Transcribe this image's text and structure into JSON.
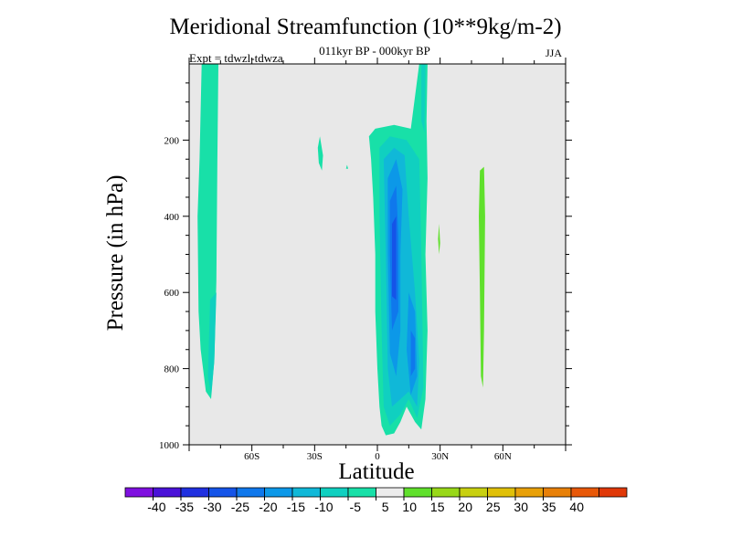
{
  "chart_data": {
    "type": "contour",
    "title": "Meridional Streamfunction (10**9kg/m-2)",
    "subtitle": "011kyr BP - 000kyr BP",
    "left_string": "Expt = tdwzl-tdwza",
    "right_string": "JJA",
    "xlabel": "Latitude",
    "ylabel": "Pressure (in hPa)",
    "xlim": [
      -90,
      90
    ],
    "ylim": [
      1000,
      0
    ],
    "x_ticks": [
      {
        "value": -60,
        "label": "60S"
      },
      {
        "value": -30,
        "label": "30S"
      },
      {
        "value": 0,
        "label": "0"
      },
      {
        "value": 30,
        "label": "30N"
      },
      {
        "value": 60,
        "label": "60N"
      }
    ],
    "y_ticks": [
      {
        "value": 200,
        "label": "200"
      },
      {
        "value": 400,
        "label": "400"
      },
      {
        "value": 600,
        "label": "600"
      },
      {
        "value": 800,
        "label": "800"
      },
      {
        "value": 1000,
        "label": "1000"
      }
    ],
    "background_color": "#e8e8e8",
    "colorbar": {
      "colors": [
        "#7f10e0",
        "#4a12d8",
        "#2030e0",
        "#1554e8",
        "#0f78ec",
        "#0c98e8",
        "#10b8d8",
        "#10d0c0",
        "#18e0a8",
        "#ececec",
        "#60e02c",
        "#98d818",
        "#c8d010",
        "#e0c008",
        "#e8a008",
        "#e88008",
        "#e85808",
        "#e03808"
      ],
      "labels": [
        "-40",
        "-35",
        "-30",
        "-25",
        "-20",
        "-15",
        "-10",
        "-5",
        "5",
        "10",
        "15",
        "20",
        "25",
        "30",
        "35",
        "40"
      ]
    },
    "regions": [
      {
        "name": "sh-polar-cell",
        "value_class": -5,
        "color": "#18e0a8",
        "points": [
          [
            -84,
            0
          ],
          [
            -76,
            0
          ],
          [
            -76.5,
            250
          ],
          [
            -77,
            570
          ],
          [
            -78,
            780
          ],
          [
            -79.5,
            880
          ],
          [
            -82,
            860
          ],
          [
            -84.5,
            750
          ],
          [
            -85.5,
            650
          ],
          [
            -86,
            400
          ],
          [
            -85,
            250
          ]
        ]
      },
      {
        "name": "sh-polar-inner",
        "value_class": -10,
        "color": "#10d0c0",
        "points": [
          [
            -80,
            620
          ],
          [
            -77,
            600
          ],
          [
            -78,
            780
          ],
          [
            -79.5,
            870
          ],
          [
            -81,
            820
          ]
        ]
      },
      {
        "name": "sh-small-blob",
        "value_class": -5,
        "color": "#18e0a8",
        "points": [
          [
            -27.5,
            190
          ],
          [
            -26,
            240
          ],
          [
            -26.5,
            280
          ],
          [
            -28,
            260
          ],
          [
            -28.5,
            220
          ]
        ]
      },
      {
        "name": "sh-tiny-blob",
        "value_class": -5,
        "color": "#18e0a8",
        "points": [
          [
            -14.5,
            265
          ],
          [
            -14,
            275
          ],
          [
            -15,
            275
          ]
        ]
      },
      {
        "name": "hadley-cell",
        "value_class": -5,
        "color": "#18e0a8",
        "points": [
          [
            -4,
            190
          ],
          [
            -1,
            170
          ],
          [
            8,
            160
          ],
          [
            16,
            170
          ],
          [
            20,
            0
          ],
          [
            24,
            0
          ],
          [
            23.5,
            150
          ],
          [
            24,
            300
          ],
          [
            23,
            500
          ],
          [
            24,
            700
          ],
          [
            23,
            880
          ],
          [
            21,
            960
          ],
          [
            18,
            940
          ],
          [
            14,
            900
          ],
          [
            11,
            940
          ],
          [
            8,
            970
          ],
          [
            4,
            975
          ],
          [
            2,
            950
          ],
          [
            1,
            900
          ],
          [
            0,
            800
          ],
          [
            -1,
            650
          ],
          [
            -1,
            500
          ],
          [
            -2,
            350
          ],
          [
            -3,
            250
          ]
        ]
      },
      {
        "name": "hadley-cell-upper",
        "value_class": -10,
        "color": "#10d0c0",
        "points": [
          [
            21,
            0
          ],
          [
            23,
            0
          ],
          [
            22.5,
            180
          ],
          [
            21,
            150
          ]
        ]
      },
      {
        "name": "hadley-cell-a",
        "value_class": -10,
        "color": "#10d0c0",
        "points": [
          [
            1,
            220
          ],
          [
            6,
            190
          ],
          [
            14,
            200
          ],
          [
            20,
            250
          ],
          [
            21,
            500
          ],
          [
            22,
            850
          ],
          [
            19,
            930
          ],
          [
            15,
            880
          ],
          [
            11,
            920
          ],
          [
            6,
            950
          ],
          [
            3,
            900
          ],
          [
            2,
            700
          ],
          [
            1,
            400
          ]
        ]
      },
      {
        "name": "hadley-cell-b",
        "value_class": -15,
        "color": "#10b8d8",
        "points": [
          [
            3,
            250
          ],
          [
            8,
            220
          ],
          [
            13,
            240
          ],
          [
            15,
            400
          ],
          [
            18,
            600
          ],
          [
            20,
            780
          ],
          [
            19,
            900
          ],
          [
            15,
            860
          ],
          [
            11,
            880
          ],
          [
            7,
            900
          ],
          [
            5,
            800
          ],
          [
            4,
            500
          ]
        ]
      },
      {
        "name": "hadley-cell-c",
        "value_class": -20,
        "color": "#0c98e8",
        "points": [
          [
            5,
            300
          ],
          [
            9,
            250
          ],
          [
            12,
            330
          ],
          [
            11,
            500
          ],
          [
            11,
            700
          ],
          [
            9,
            820
          ],
          [
            6,
            760
          ],
          [
            5,
            500
          ]
        ]
      },
      {
        "name": "hadley-cell-d",
        "value_class": -20,
        "color": "#0c98e8",
        "points": [
          [
            15,
            600
          ],
          [
            18,
            650
          ],
          [
            19,
            820
          ],
          [
            16,
            870
          ],
          [
            14,
            750
          ]
        ]
      },
      {
        "name": "hadley-cell-e",
        "value_class": -25,
        "color": "#0f78ec",
        "points": [
          [
            6,
            360
          ],
          [
            9,
            320
          ],
          [
            10,
            450
          ],
          [
            10,
            650
          ],
          [
            7,
            700
          ],
          [
            6,
            500
          ]
        ]
      },
      {
        "name": "hadley-cell-f",
        "value_class": -25,
        "color": "#0f78ec",
        "points": [
          [
            16,
            700
          ],
          [
            18,
            720
          ],
          [
            18,
            800
          ],
          [
            16,
            820
          ]
        ]
      },
      {
        "name": "hadley-core",
        "value_class": -30,
        "color": "#1554e8",
        "points": [
          [
            7,
            420
          ],
          [
            9,
            400
          ],
          [
            9,
            620
          ],
          [
            7,
            610
          ]
        ]
      },
      {
        "name": "nh-small-positive",
        "value_class": 5,
        "color": "#60e02c",
        "points": [
          [
            29.5,
            420
          ],
          [
            30,
            470
          ],
          [
            29.5,
            500
          ],
          [
            29,
            460
          ]
        ]
      },
      {
        "name": "nh-ferrel-positive",
        "value_class": 5,
        "color": "#60e02c",
        "points": [
          [
            49,
            280
          ],
          [
            51,
            270
          ],
          [
            51.5,
            400
          ],
          [
            51,
            700
          ],
          [
            50.5,
            850
          ],
          [
            49.5,
            820
          ],
          [
            49,
            600
          ],
          [
            48.5,
            400
          ]
        ]
      }
    ]
  }
}
